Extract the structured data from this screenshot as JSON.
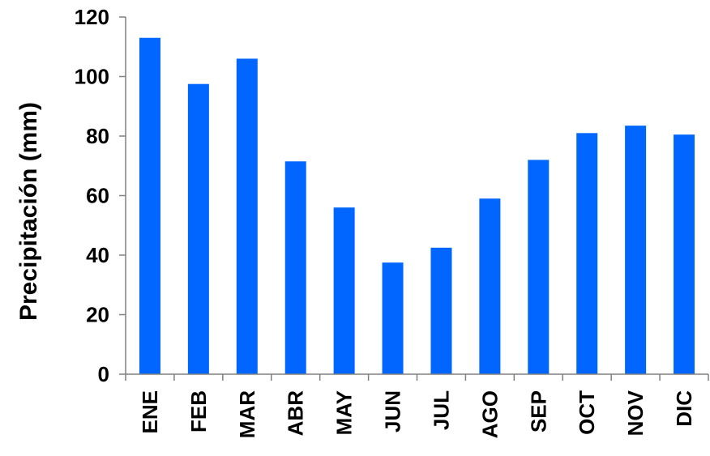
{
  "chart_data": {
    "type": "bar",
    "title": "",
    "xlabel": "",
    "ylabel": "Precipitación (mm)",
    "categories": [
      "ENE",
      "FEB",
      "MAR",
      "ABR",
      "MAY",
      "JUN",
      "JUL",
      "AGO",
      "SEP",
      "OCT",
      "NOV",
      "DIC"
    ],
    "values": [
      113,
      97.5,
      106,
      71.5,
      56,
      37.5,
      42.5,
      59,
      72,
      81,
      83.5,
      80.5
    ],
    "ylim": [
      0,
      120
    ],
    "yticks": [
      0,
      20,
      40,
      60,
      80,
      100,
      120
    ],
    "grid": false,
    "legend": "none",
    "bar_color": "#0066ff"
  }
}
